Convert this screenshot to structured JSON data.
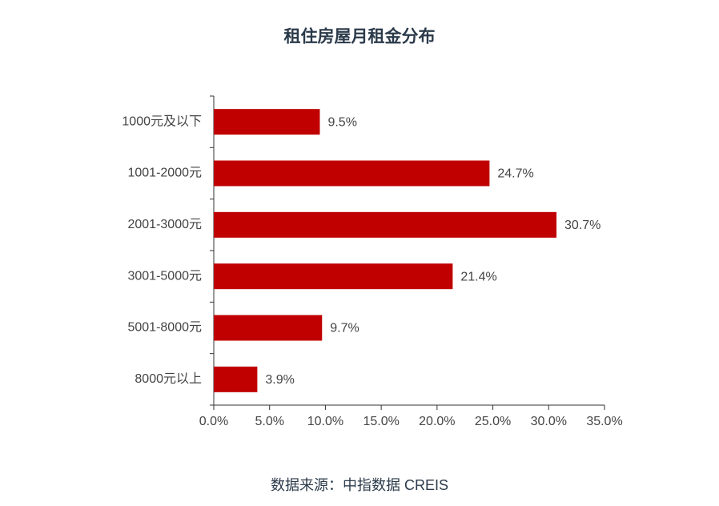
{
  "chart_data": {
    "type": "bar",
    "orientation": "horizontal",
    "title": "租住房屋月租金分布",
    "categories": [
      "1000元及以下",
      "1001-2000元",
      "2001-3000元",
      "3001-5000元",
      "5001-8000元",
      "8000元以上"
    ],
    "values": [
      9.5,
      24.7,
      30.7,
      21.4,
      9.7,
      3.9
    ],
    "value_labels": [
      "9.5%",
      "24.7%",
      "30.7%",
      "21.4%",
      "9.7%",
      "3.9%"
    ],
    "color": "#c00000",
    "xlim": [
      0,
      35
    ],
    "xticks": [
      {
        "value": 0,
        "label": "0.0%"
      },
      {
        "value": 5,
        "label": "5.0%"
      },
      {
        "value": 10,
        "label": "10.0%"
      },
      {
        "value": 15,
        "label": "15.0%"
      },
      {
        "value": 20,
        "label": "20.0%"
      },
      {
        "value": 25,
        "label": "25.0%"
      },
      {
        "value": 30,
        "label": "30.0%"
      },
      {
        "value": 35,
        "label": "35.0%"
      }
    ],
    "source": "数据来源：中指数据 CREIS"
  }
}
